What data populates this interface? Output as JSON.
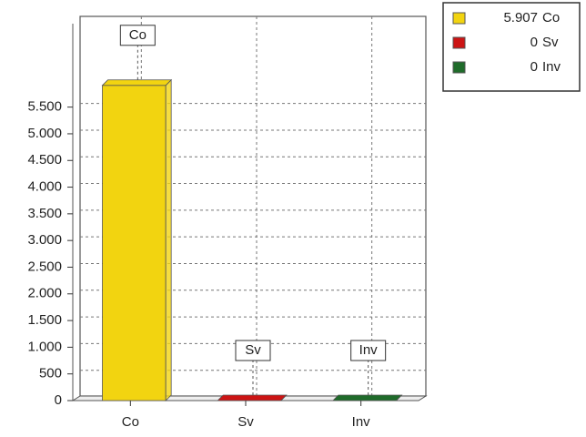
{
  "chart_data": {
    "type": "bar3d",
    "categories": [
      "Co",
      "Sv",
      "Inv"
    ],
    "values": [
      5907,
      0,
      0
    ],
    "value_labels": [
      "5.907",
      "0",
      "0"
    ],
    "colors": [
      "#f2d410",
      "#cc1414",
      "#1f6b2a"
    ],
    "ylim": [
      0,
      7200
    ],
    "yticks": [
      0,
      500,
      {
        "value": 1000,
        "label": "1.000"
      },
      {
        "value": 1500,
        "label": "1.500"
      },
      {
        "value": 2000,
        "label": "2.000"
      },
      {
        "value": 2500,
        "label": "2.500"
      },
      {
        "value": 3000,
        "label": "3.000"
      },
      {
        "value": 3500,
        "label": "3.500"
      },
      {
        "value": 4000,
        "label": "4.000"
      },
      {
        "value": 4500,
        "label": "4.500"
      },
      {
        "value": 5000,
        "label": "5.000"
      },
      {
        "value": 5500,
        "label": "5.500"
      }
    ],
    "grid": true
  }
}
